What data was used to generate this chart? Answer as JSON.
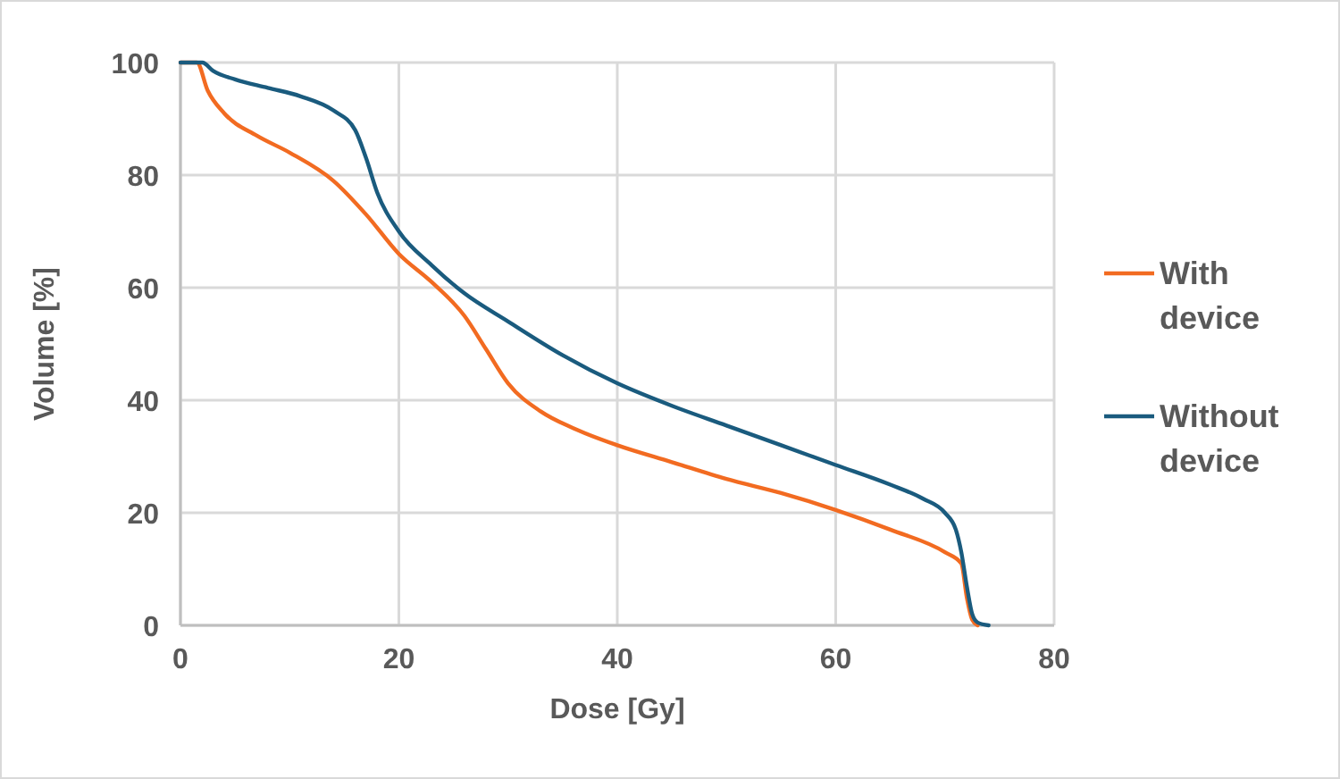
{
  "chart_data": {
    "type": "line",
    "xlabel": "Dose [Gy]",
    "ylabel": "Volume [%]",
    "xlim": [
      0,
      80
    ],
    "xticks": [
      0,
      20,
      40,
      60,
      80
    ],
    "ylim": [
      0,
      100
    ],
    "yticks": [
      0,
      20,
      40,
      60,
      80,
      100
    ],
    "grid": true,
    "legend": "right",
    "line_style": "solid",
    "series": [
      {
        "name": "With device",
        "color": "#f26b21",
        "x": [
          0,
          1.5,
          2.5,
          4,
          7,
          10,
          14,
          17,
          20,
          23,
          26,
          28,
          30,
          33,
          36,
          40,
          45,
          50,
          55,
          60,
          65,
          70,
          71.5,
          72,
          72.5,
          73
        ],
        "values": [
          100,
          100,
          95,
          91,
          87,
          84,
          79,
          73,
          66,
          61,
          55,
          49,
          43,
          38,
          35,
          32,
          29,
          26,
          23.5,
          20.5,
          17,
          13,
          11,
          5,
          1,
          0
        ]
      },
      {
        "name": "Without device",
        "color": "#1a5b7e",
        "x": [
          0,
          2,
          3,
          5,
          8,
          11,
          14,
          16,
          17,
          18,
          20,
          23,
          26,
          30,
          35,
          40,
          45,
          50,
          55,
          60,
          65,
          68,
          70,
          71,
          71.5,
          72,
          72.5,
          73,
          74
        ],
        "values": [
          100,
          100,
          98.5,
          97,
          95.5,
          94,
          91.5,
          88,
          83,
          77,
          70,
          64,
          59,
          54,
          48,
          43,
          39,
          35.5,
          32,
          28.5,
          25,
          22.5,
          20,
          17,
          13,
          7,
          2,
          0.5,
          0
        ]
      }
    ]
  }
}
